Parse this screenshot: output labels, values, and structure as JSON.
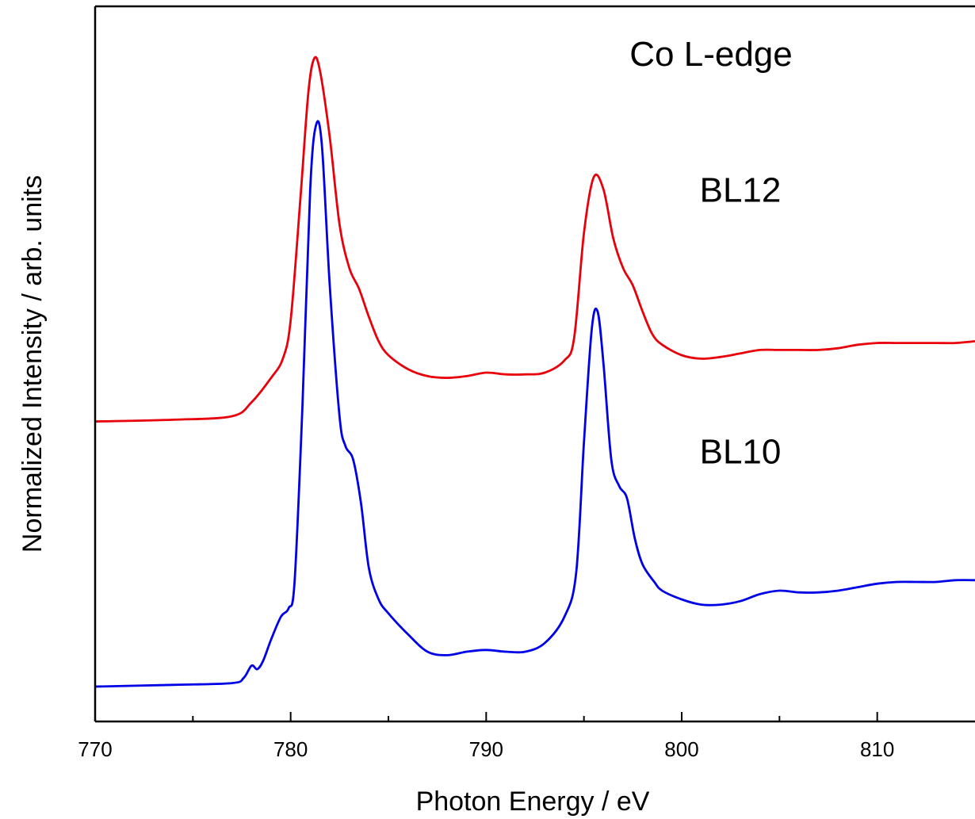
{
  "chart_data": {
    "type": "line",
    "title": "",
    "xlabel": "Photon Energy / eV",
    "ylabel": "Normalized Intensity / arb. units",
    "xlim": [
      770,
      815
    ],
    "ylim": [
      -1.7,
      2.4
    ],
    "x_ticks": [
      770,
      780,
      790,
      800,
      810
    ],
    "x_minor_ticks": [
      775,
      785,
      795,
      805
    ],
    "y_tick_labels_shown": false,
    "grid": false,
    "legend": "none",
    "annotations": [
      {
        "text": "Co L-edge",
        "x": 801.5,
        "y": 2.06
      },
      {
        "text": "BL12",
        "x": 803,
        "y": 1.28
      },
      {
        "text": "BL10",
        "x": 803,
        "y": -0.22
      }
    ],
    "series": [
      {
        "color": "#e8000b",
        "x": [
          770,
          774,
          777,
          778,
          779,
          779.6,
          780,
          780.5,
          780.9,
          781.2,
          781.5,
          782,
          782.5,
          783,
          783.5,
          784,
          784.5,
          785,
          786,
          787,
          788,
          789,
          790,
          791,
          792,
          793,
          794,
          794.5,
          795,
          795.5,
          796,
          796.5,
          797,
          797.5,
          798,
          798.5,
          799,
          800,
          801,
          802,
          803,
          804,
          805,
          806,
          807,
          808,
          809,
          810,
          811,
          812,
          813,
          814,
          815
        ],
        "y": [
          0.02,
          0.03,
          0.05,
          0.13,
          0.27,
          0.38,
          0.6,
          1.3,
          1.9,
          2.1,
          2.03,
          1.65,
          1.15,
          0.9,
          0.78,
          0.62,
          0.48,
          0.4,
          0.32,
          0.28,
          0.27,
          0.28,
          0.3,
          0.29,
          0.29,
          0.3,
          0.37,
          0.5,
          1.1,
          1.42,
          1.35,
          1.07,
          0.9,
          0.8,
          0.65,
          0.52,
          0.46,
          0.4,
          0.38,
          0.39,
          0.41,
          0.43,
          0.43,
          0.43,
          0.43,
          0.44,
          0.46,
          0.47,
          0.47,
          0.47,
          0.47,
          0.47,
          0.48
        ]
      },
      {
        "color": "#0000e6",
        "x": [
          770,
          774,
          777,
          777.6,
          778,
          778.3,
          778.6,
          779,
          779.5,
          779.9,
          780.2,
          780.6,
          781,
          781.3,
          781.6,
          782,
          782.5,
          782.8,
          783.2,
          783.6,
          784,
          784.5,
          785,
          786,
          787,
          788,
          789,
          790,
          791,
          792,
          793,
          794,
          794.6,
          795,
          795.4,
          795.7,
          796,
          796.4,
          796.8,
          797.2,
          797.6,
          798,
          798.6,
          799,
          800,
          801,
          802,
          803,
          804,
          805,
          806,
          807,
          808,
          809,
          810,
          811,
          812,
          813,
          814,
          815
        ],
        "y": [
          -1.5,
          -1.49,
          -1.48,
          -1.45,
          -1.38,
          -1.4,
          -1.35,
          -1.23,
          -1.1,
          -1.05,
          -0.9,
          0.1,
          1.35,
          1.72,
          1.6,
          0.8,
          0.05,
          -0.12,
          -0.2,
          -0.45,
          -0.82,
          -1.0,
          -1.08,
          -1.2,
          -1.3,
          -1.32,
          -1.3,
          -1.29,
          -1.3,
          -1.3,
          -1.25,
          -1.1,
          -0.85,
          -0.1,
          0.55,
          0.65,
          0.35,
          -0.2,
          -0.35,
          -0.42,
          -0.65,
          -0.8,
          -0.9,
          -0.95,
          -1.0,
          -1.03,
          -1.03,
          -1.01,
          -0.97,
          -0.95,
          -0.96,
          -0.96,
          -0.95,
          -0.93,
          -0.91,
          -0.9,
          -0.9,
          -0.9,
          -0.89,
          -0.89
        ]
      }
    ]
  }
}
